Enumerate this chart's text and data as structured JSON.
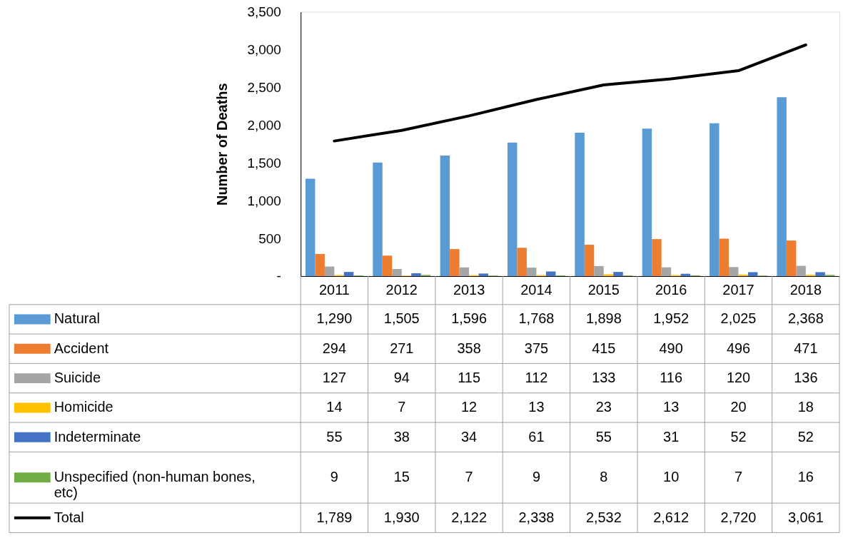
{
  "chart_data": {
    "type": "bar",
    "ylabel": "Number of Deaths",
    "categories": [
      "2011",
      "2012",
      "2013",
      "2014",
      "2015",
      "2016",
      "2017",
      "2018"
    ],
    "series": [
      {
        "name": "Natural",
        "color": "#5b9bd5",
        "values": [
          1290,
          1505,
          1596,
          1768,
          1898,
          1952,
          2025,
          2368
        ],
        "value_labels": [
          "1,290",
          "1,505",
          "1,596",
          "1,768",
          "1,898",
          "1,952",
          "2,025",
          "2,368"
        ]
      },
      {
        "name": "Accident",
        "color": "#ed7d31",
        "values": [
          294,
          271,
          358,
          375,
          415,
          490,
          496,
          471
        ],
        "value_labels": [
          "294",
          "271",
          "358",
          "375",
          "415",
          "490",
          "496",
          "471"
        ]
      },
      {
        "name": "Suicide",
        "color": "#a5a5a5",
        "values": [
          127,
          94,
          115,
          112,
          133,
          116,
          120,
          136
        ],
        "value_labels": [
          "127",
          "94",
          "115",
          "112",
          "133",
          "116",
          "120",
          "136"
        ]
      },
      {
        "name": "Homicide",
        "color": "#ffc000",
        "values": [
          14,
          7,
          12,
          13,
          23,
          13,
          20,
          18
        ],
        "value_labels": [
          "14",
          "7",
          "12",
          "13",
          "23",
          "13",
          "20",
          "18"
        ]
      },
      {
        "name": "Indeterminate",
        "color": "#4472c4",
        "values": [
          55,
          38,
          34,
          61,
          55,
          31,
          52,
          52
        ],
        "value_labels": [
          "55",
          "38",
          "34",
          "61",
          "55",
          "31",
          "52",
          "52"
        ]
      },
      {
        "name": "Unspecified (non-human bones, etc)",
        "color": "#70ad47",
        "values": [
          9,
          15,
          7,
          9,
          8,
          10,
          7,
          16
        ],
        "value_labels": [
          "9",
          "15",
          "7",
          "9",
          "8",
          "10",
          "7",
          "16"
        ]
      },
      {
        "name": "Total",
        "type": "line",
        "color": "#000000",
        "values": [
          1789,
          1930,
          2122,
          2338,
          2532,
          2612,
          2720,
          3061
        ],
        "value_labels": [
          "1,789",
          "1,930",
          "2,122",
          "2,338",
          "2,532",
          "2,612",
          "2,720",
          "3,061"
        ]
      }
    ],
    "ylim": [
      0,
      3500
    ],
    "yticks": [
      {
        "value": 0,
        "label": "-"
      },
      500,
      {
        "value": 1000,
        "label": "1,000"
      },
      {
        "value": 1500,
        "label": "1,500"
      },
      {
        "value": 2000,
        "label": "2,000"
      },
      {
        "value": 2500,
        "label": "2,500"
      },
      {
        "value": 3000,
        "label": "3,000"
      },
      {
        "value": 3500,
        "label": "3,500"
      }
    ],
    "grid": false,
    "legend": "bottom"
  }
}
